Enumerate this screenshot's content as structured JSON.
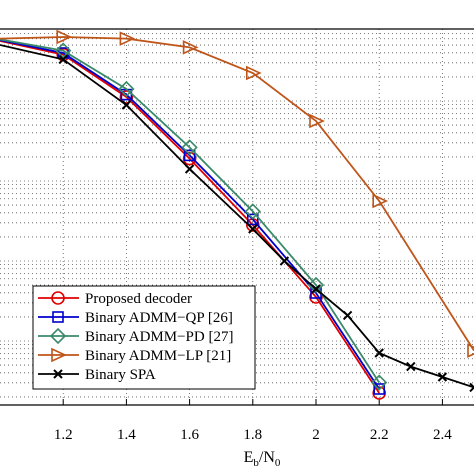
{
  "chart_data": {
    "type": "line",
    "title": "",
    "xlabel": "E",
    "xlabel_sub1": "b",
    "xlabel_mid": "/N",
    "xlabel_sub2": "0",
    "ylabel": "",
    "xlim": [
      1.0,
      2.5
    ],
    "x_ticks": [
      1.2,
      1.4,
      1.6,
      1.8,
      2.0,
      2.2,
      2.4
    ],
    "x_tick_labels": [
      "1.2",
      "1.4",
      "1.6",
      "1.8",
      "2",
      "2.2",
      "2.4"
    ],
    "ylim": [
      -4.8,
      -0.1
    ],
    "y_log_scale": true,
    "grid": true,
    "legend_position": "bottom-left",
    "series": [
      {
        "name": "Proposed decoder",
        "color": "#e00000",
        "marker": "circle",
        "x": [
          1.0,
          1.2,
          1.4,
          1.6,
          1.8,
          2.0,
          2.2
        ],
        "y": [
          -0.25,
          -0.42,
          -0.95,
          -1.72,
          -2.55,
          -3.45,
          -4.65
        ]
      },
      {
        "name": "Binary ADMM−QP [26]",
        "color": "#0000cc",
        "marker": "square",
        "x": [
          1.0,
          1.2,
          1.4,
          1.6,
          1.8,
          2.0,
          2.2
        ],
        "y": [
          -0.24,
          -0.4,
          -0.92,
          -1.68,
          -2.48,
          -3.4,
          -4.6
        ]
      },
      {
        "name": "Binary ADMM−PD [27]",
        "color": "#3a8a6a",
        "marker": "diamond",
        "x": [
          1.0,
          1.2,
          1.4,
          1.6,
          1.8,
          2.0,
          2.2
        ],
        "y": [
          -0.23,
          -0.37,
          -0.85,
          -1.58,
          -2.38,
          -3.3,
          -4.52
        ]
      },
      {
        "name": "Binary ADMM−LP [21]",
        "color": "#c0551a",
        "marker": "triangle-right",
        "x": [
          1.0,
          1.2,
          1.4,
          1.6,
          1.8,
          2.0,
          2.2,
          2.5
        ],
        "y": [
          -0.22,
          -0.2,
          -0.22,
          -0.33,
          -0.65,
          -1.25,
          -2.25,
          -4.12
        ]
      },
      {
        "name": "Binary SPA",
        "color": "#000000",
        "marker": "x",
        "x": [
          1.0,
          1.2,
          1.4,
          1.6,
          1.8,
          1.9,
          2.0,
          2.1,
          2.2,
          2.3,
          2.4,
          2.5
        ],
        "y": [
          -0.3,
          -0.48,
          -1.05,
          -1.85,
          -2.6,
          -3.0,
          -3.35,
          -3.68,
          -4.15,
          -4.32,
          -4.45,
          -4.58
        ]
      }
    ]
  }
}
